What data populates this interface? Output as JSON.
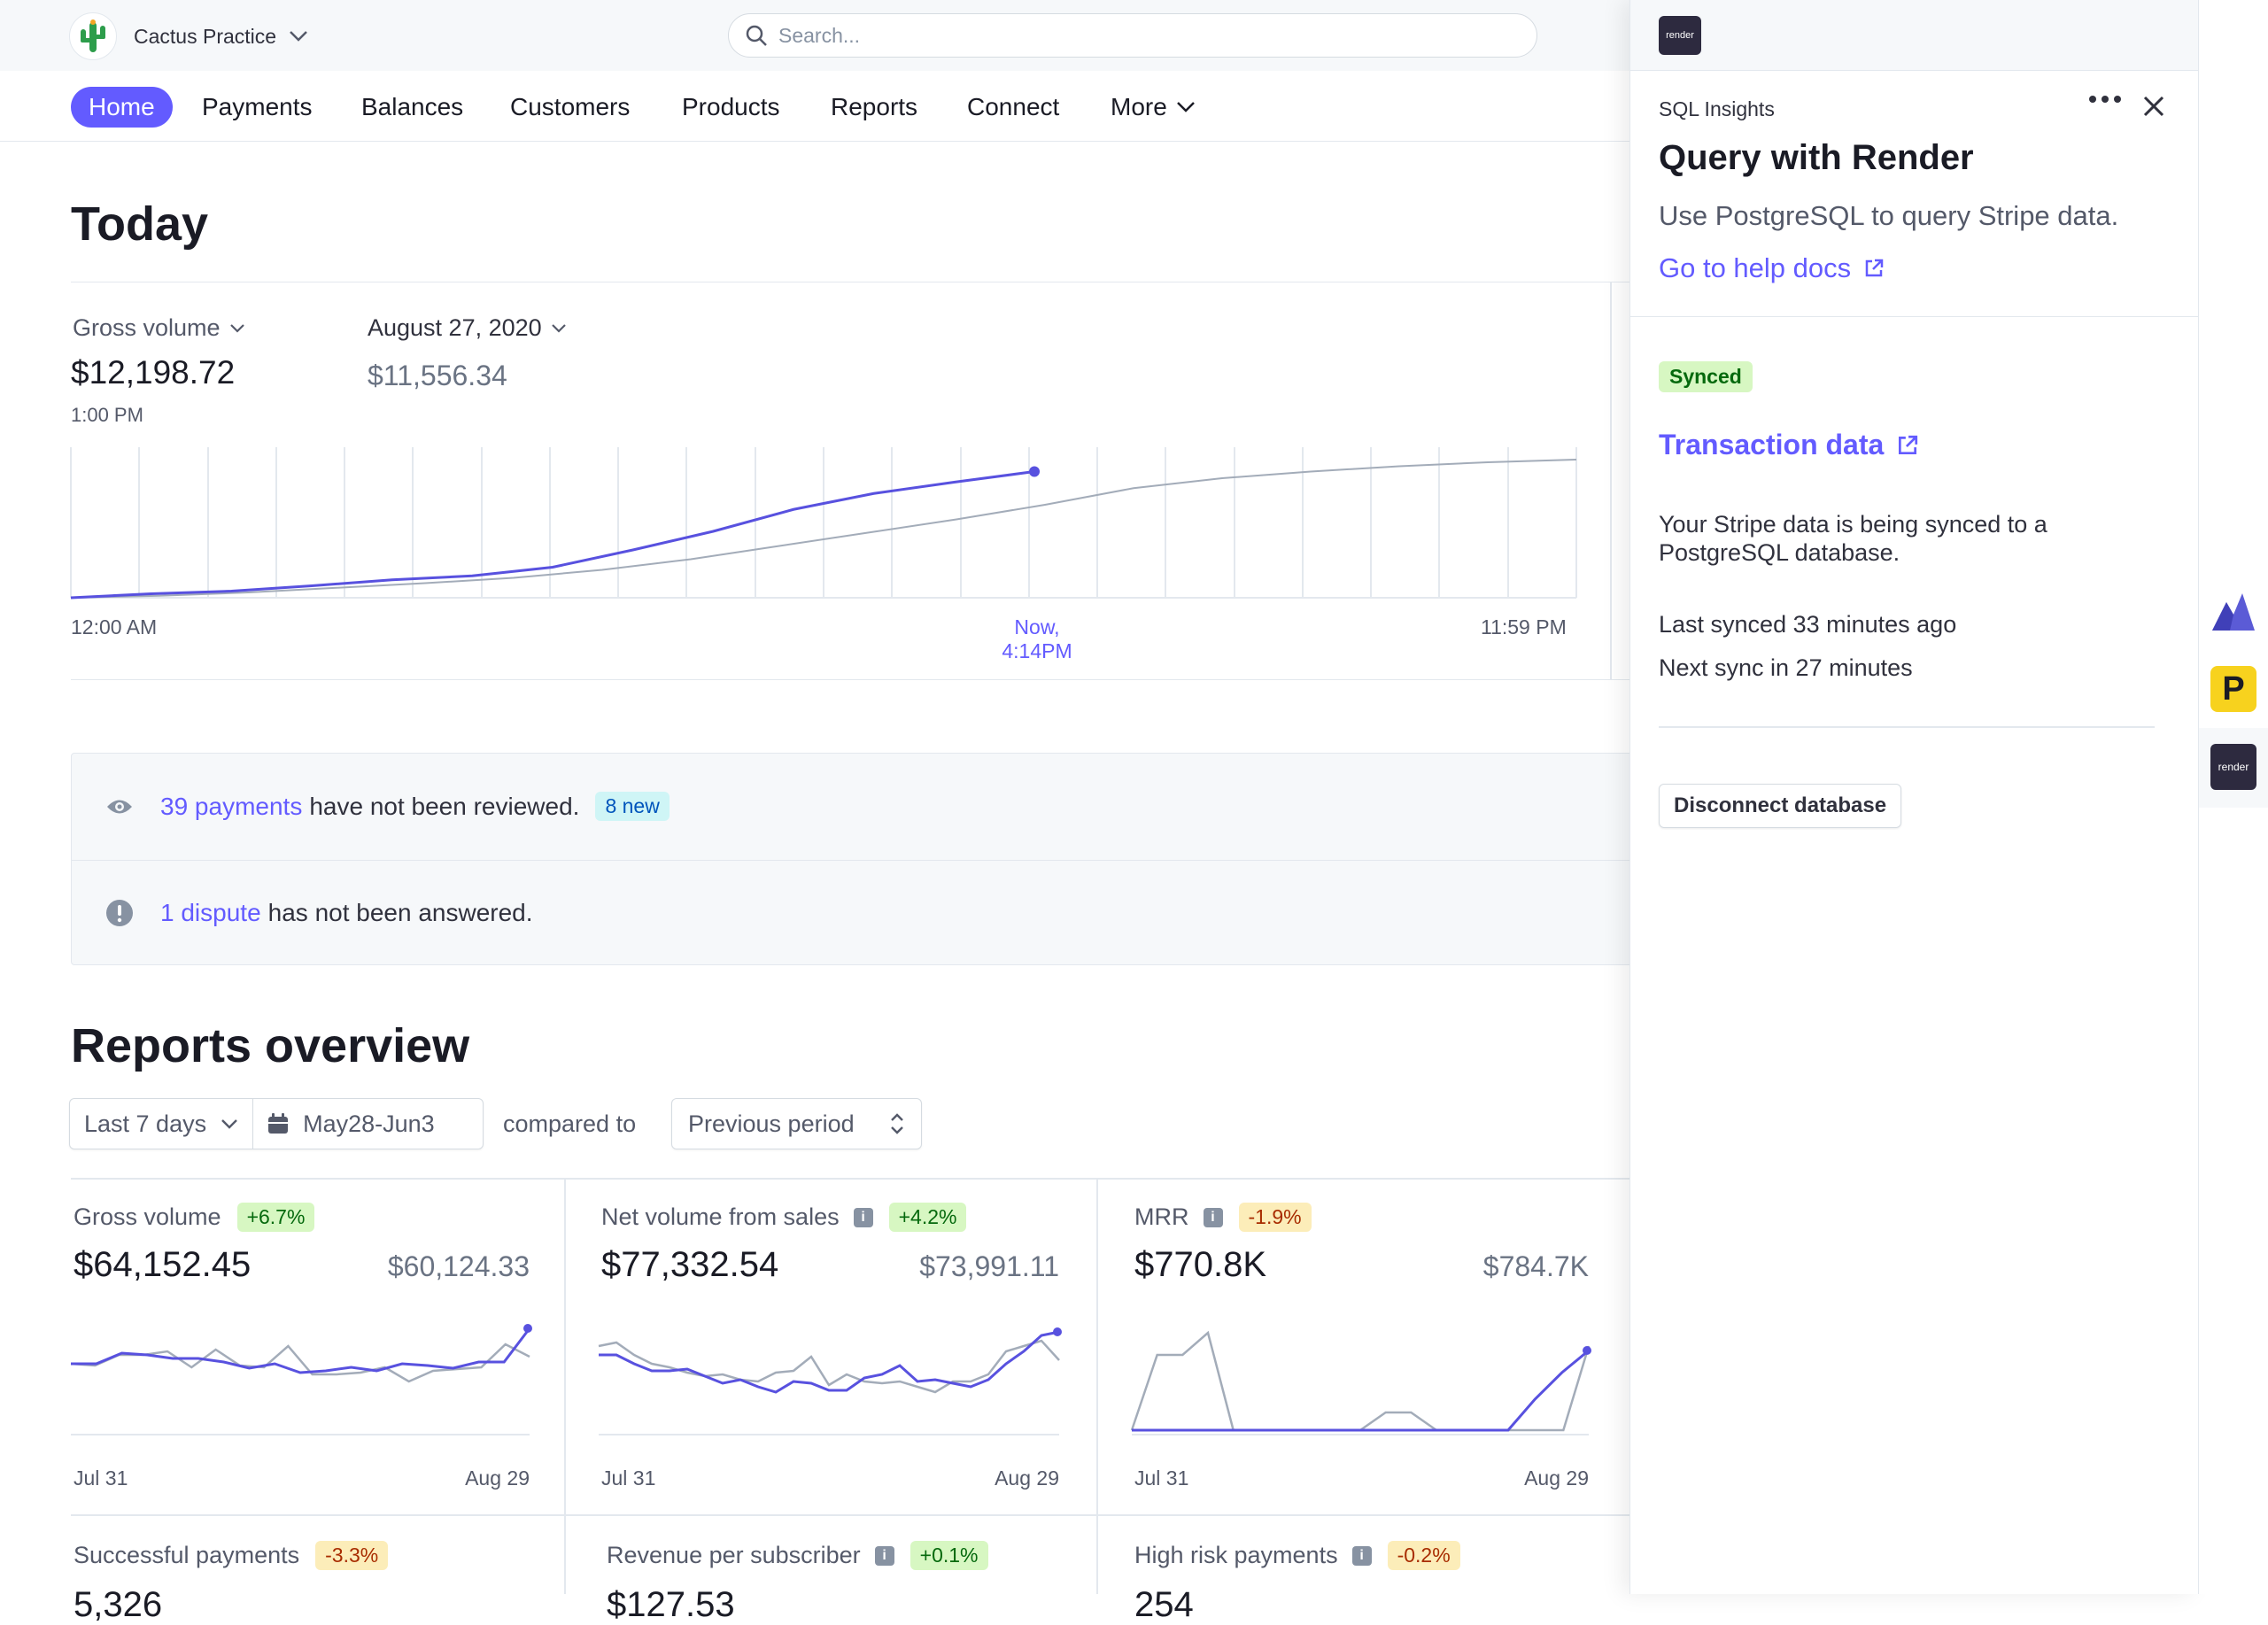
{
  "account": {
    "name": "Cactus Practice"
  },
  "search": {
    "placeholder": "Search..."
  },
  "nav": {
    "home": "Home",
    "payments": "Payments",
    "balances": "Balances",
    "customers": "Customers",
    "products": "Products",
    "reports": "Reports",
    "connect": "Connect",
    "more": "More"
  },
  "today": {
    "title": "Today",
    "metric_label": "Gross volume",
    "value": "$12,198.72",
    "time": "1:00 PM",
    "compare_label": "August 27, 2020",
    "compare_value": "$11,556.34",
    "axis": {
      "start": "12:00 AM",
      "now_1": "Now,",
      "now_2": "4:14PM",
      "end": "11:59 PM"
    }
  },
  "today_chart": {
    "type": "line",
    "series": [
      {
        "color": "#5851df",
        "values": [
          0,
          6,
          10,
          18,
          27,
          33,
          46,
          72,
          100,
          133,
          157,
          174,
          190
        ]
      },
      {
        "color": "#a3acb9",
        "values": [
          0,
          3,
          8,
          15,
          22,
          30,
          42,
          58,
          78,
          98,
          118,
          140,
          165,
          180,
          190,
          198,
          204,
          208
        ]
      }
    ]
  },
  "alerts": {
    "payments_link": "39 payments",
    "payments_text": "have not been reviewed.",
    "payments_badge": "8 new",
    "dispute_link": "1 dispute",
    "dispute_text": "has not been answered."
  },
  "reports": {
    "title": "Reports overview",
    "range": "Last 7 days",
    "dates": "May28-Jun3",
    "compared_to": "compared to",
    "period": "Previous period"
  },
  "cards": [
    {
      "title": "Gross volume",
      "change": "+6.7%",
      "value": "$64,152.45",
      "previous": "$60,124.33",
      "x_start": "Jul 31",
      "x_end": "Aug 29",
      "series": [
        [
          40,
          40,
          28,
          30,
          34,
          34,
          38,
          45,
          40,
          50,
          48,
          44,
          48,
          40,
          42,
          45,
          38,
          38,
          0
        ],
        [
          40,
          42,
          30,
          30,
          26,
          44,
          24,
          42,
          44,
          20,
          52,
          52,
          50,
          44,
          60,
          48,
          46,
          44,
          18,
          32
        ]
      ]
    },
    {
      "title": "Net volume from sales",
      "change": "+4.2%",
      "value": "$77,332.54",
      "previous": "$73,991.11",
      "x_start": "Jul 31",
      "x_end": "Aug 29",
      "series": [
        [
          30,
          30,
          40,
          48,
          48,
          46,
          54,
          62,
          58,
          66,
          72,
          60,
          62,
          70,
          70,
          56,
          52,
          42,
          60,
          58,
          62,
          66,
          58,
          40,
          26,
          8,
          4
        ],
        [
          20,
          16,
          30,
          40,
          44,
          50,
          54,
          52,
          58,
          60,
          50,
          48,
          32,
          64,
          52,
          60,
          62,
          60,
          66,
          72,
          60,
          60,
          52,
          26,
          20,
          14,
          36
        ]
      ]
    },
    {
      "title": "MRR",
      "change": "-1.9%",
      "value": "$770.8K",
      "previous": "$784.7K",
      "x_start": "Jul 31",
      "x_end": "Aug 29",
      "series": [
        [
          115,
          115,
          115,
          115,
          115,
          115,
          115,
          115,
          115,
          115,
          115,
          115,
          115,
          115,
          115,
          80,
          50,
          25
        ],
        [
          115,
          30,
          30,
          5,
          115,
          115,
          115,
          115,
          115,
          115,
          95,
          95,
          115,
          115,
          115,
          115,
          115,
          115,
          20
        ]
      ]
    }
  ],
  "cards2": [
    {
      "title": "Successful payments",
      "change": "-3.3%",
      "value": "5,326"
    },
    {
      "title": "Revenue per subscriber",
      "change": "+0.1%",
      "value": "$127.53"
    },
    {
      "title": "High risk payments",
      "change": "-0.2%",
      "value": "254"
    }
  ],
  "panel": {
    "logo_text": "render",
    "app_name": "SQL Insights",
    "title": "Query with Render",
    "subtitle": "Use PostgreSQL to query Stripe data.",
    "docs_link": "Go to help docs",
    "status": "Synced",
    "section_title": "Transaction data",
    "description": "Your Stripe data is being synced to a PostgreSQL database.",
    "last_synced": "Last synced 33 minutes ago",
    "next_sync": "Next sync in 27 minutes",
    "disconnect": "Disconnect database"
  },
  "rail": {
    "render_label": "render"
  },
  "colors": {
    "accent": "#635bff",
    "series_primary": "#5851df",
    "series_compare": "#a3acb9"
  }
}
